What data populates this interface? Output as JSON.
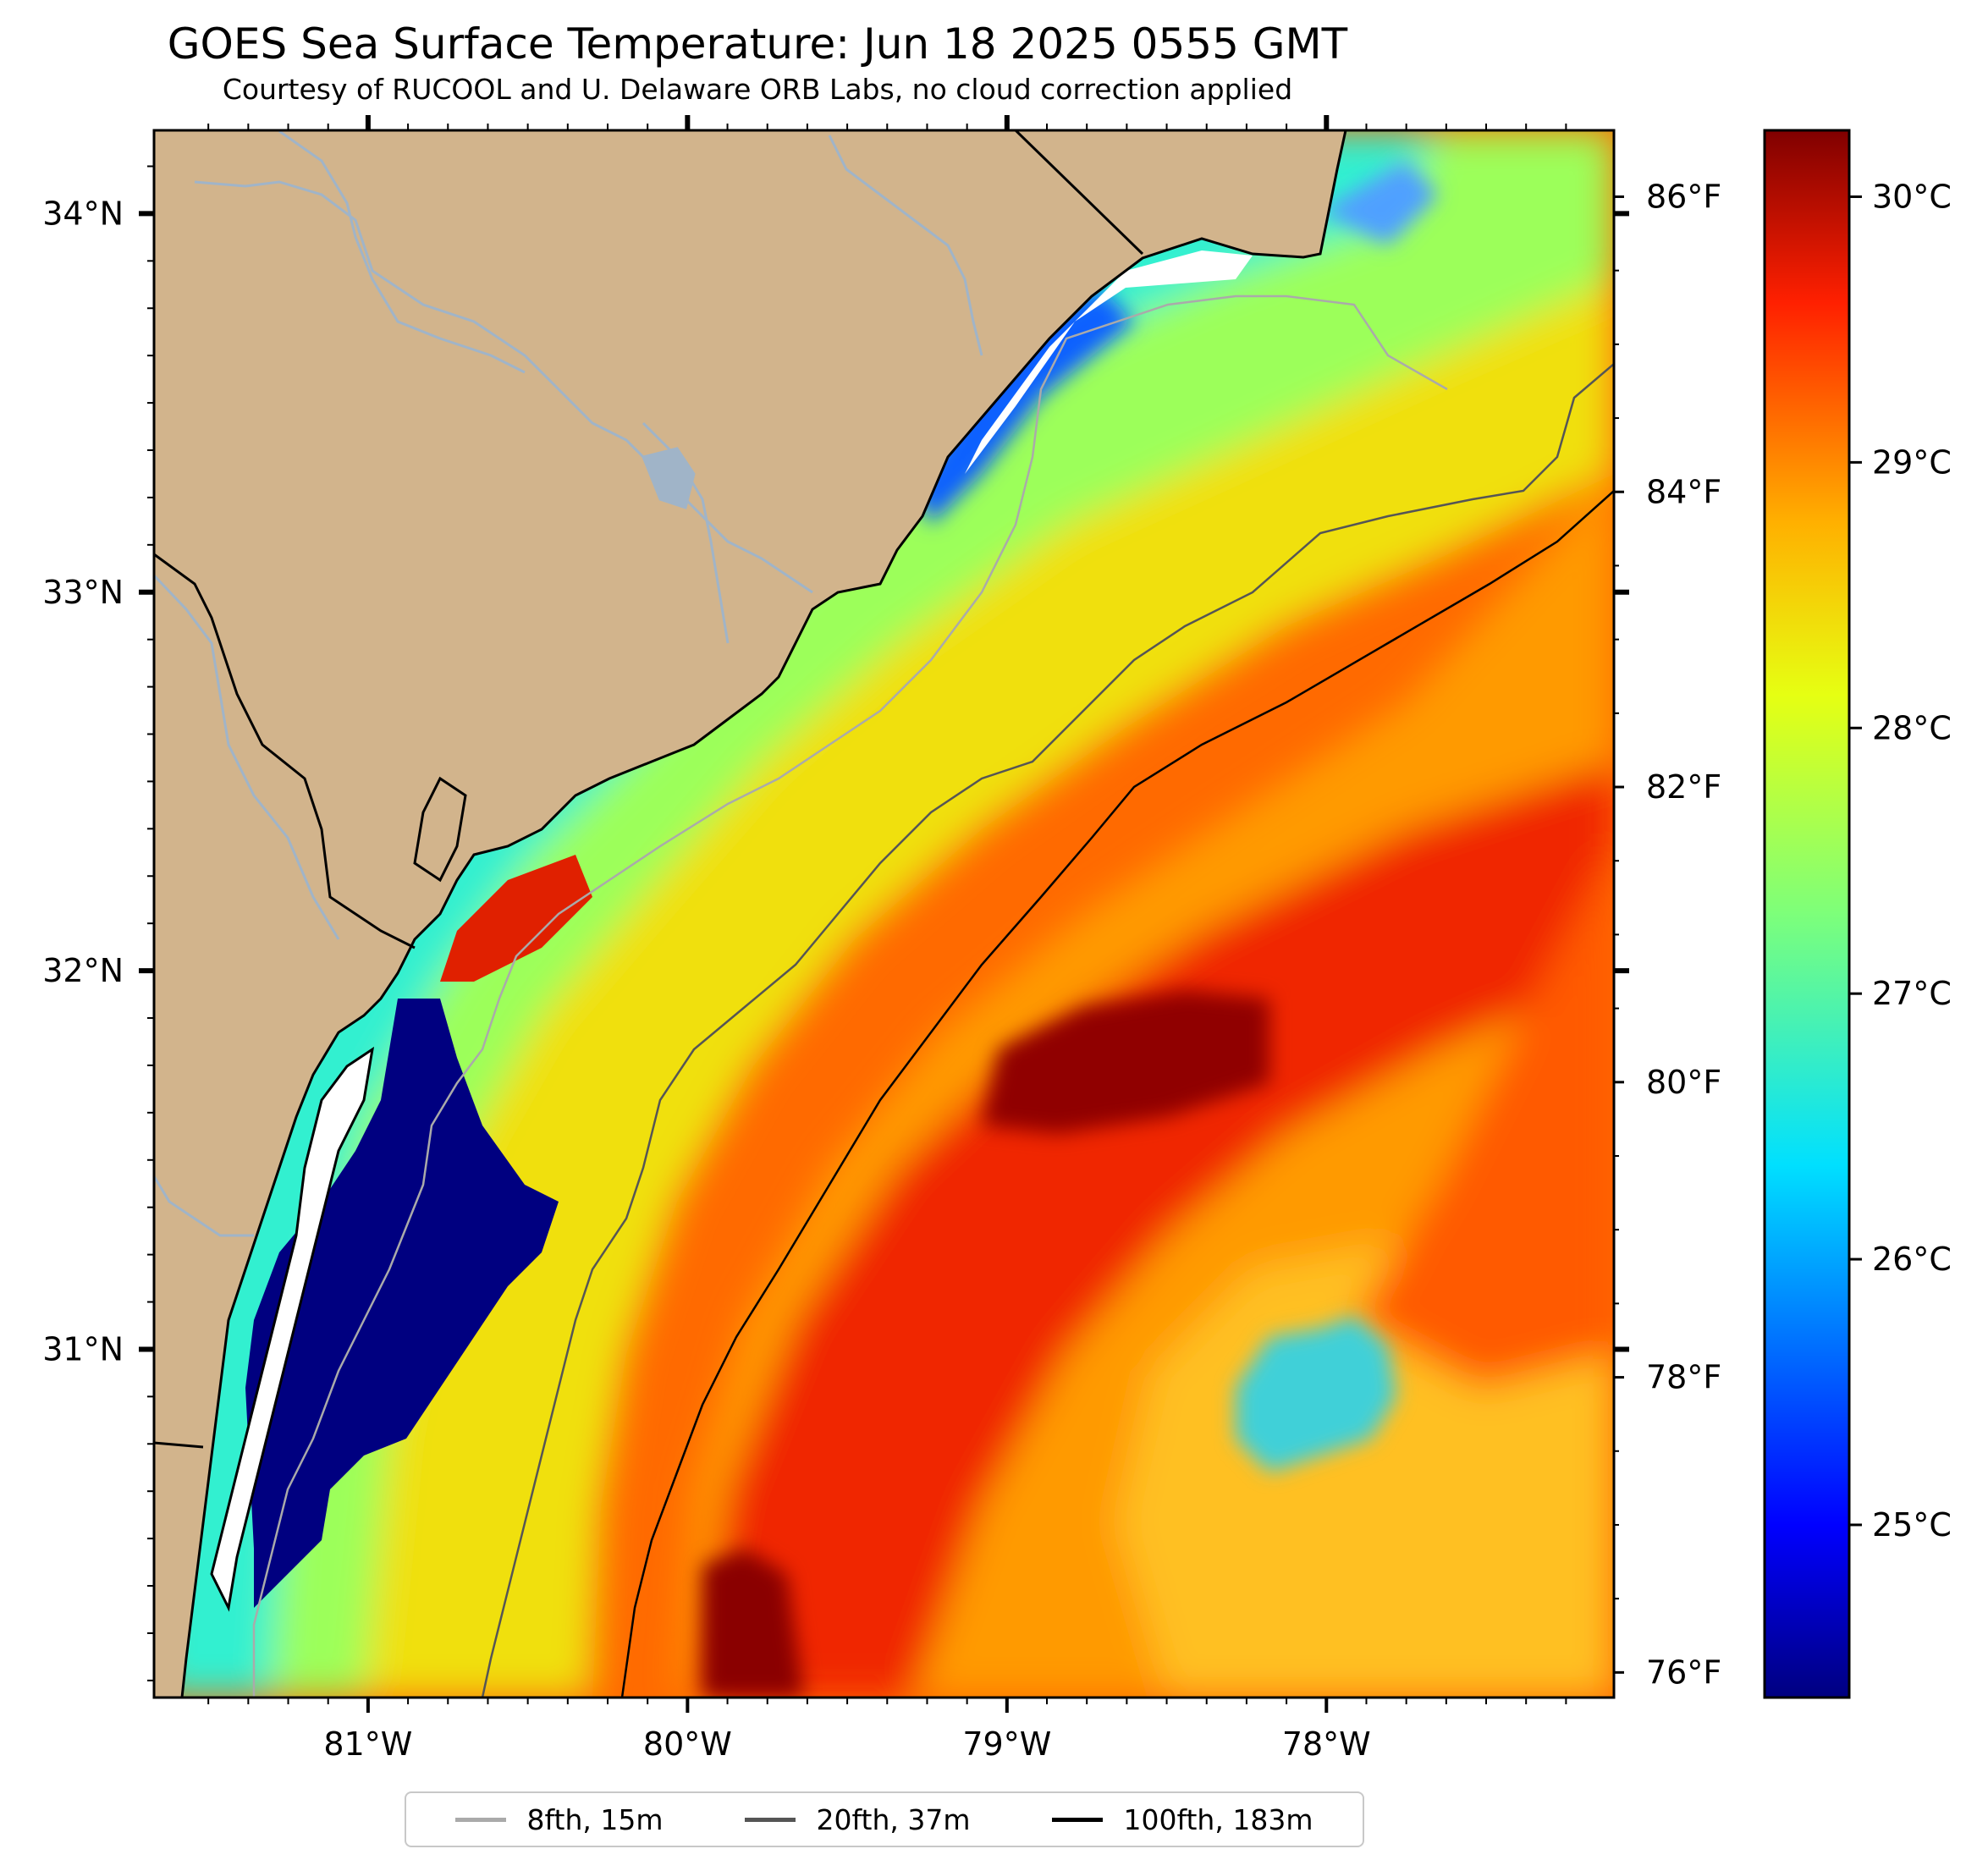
{
  "header": {
    "title": "GOES Sea Surface Temperature: Jun 18 2025 0555 GMT",
    "subtitle": "Courtesy of RUCOOL and U. Delaware ORB Labs, no cloud correction applied"
  },
  "map": {
    "lon_range": [
      -81.67,
      -77.1
    ],
    "lat_range": [
      30.08,
      34.22
    ],
    "lon_ticks": [
      {
        "value": -81,
        "label": "81°W"
      },
      {
        "value": -80,
        "label": "80°W"
      },
      {
        "value": -79,
        "label": "79°W"
      },
      {
        "value": -78,
        "label": "78°W"
      }
    ],
    "lat_ticks": [
      {
        "value": 31,
        "label": "31°N"
      },
      {
        "value": 32,
        "label": "32°N"
      },
      {
        "value": 33,
        "label": "33°N"
      },
      {
        "value": 34,
        "label": "34°N"
      }
    ],
    "land_color": "#d2b48c",
    "coast_color": "#000000",
    "river_color": "#a0b4c8"
  },
  "fahrenheit_axis": {
    "ticks": [
      {
        "value": 76,
        "label": "76°F"
      },
      {
        "value": 78,
        "label": "78°F"
      },
      {
        "value": 80,
        "label": "80°F"
      },
      {
        "value": 82,
        "label": "82°F"
      },
      {
        "value": 84,
        "label": "84°F"
      },
      {
        "value": 86,
        "label": "86°F"
      }
    ]
  },
  "colorbar": {
    "min_c": 24.35,
    "max_c": 30.25,
    "colormap": "jet",
    "ticks": [
      {
        "value": 25,
        "label": "25°C"
      },
      {
        "value": 26,
        "label": "26°C"
      },
      {
        "value": 27,
        "label": "27°C"
      },
      {
        "value": 28,
        "label": "28°C"
      },
      {
        "value": 29,
        "label": "29°C"
      },
      {
        "value": 30,
        "label": "30°C"
      }
    ]
  },
  "legend": {
    "items": [
      {
        "label": "8fth, 15m",
        "color": "#aaaaaa"
      },
      {
        "label": "20fth, 37m",
        "color": "#555555"
      },
      {
        "label": "100fth, 183m",
        "color": "#000000"
      }
    ]
  }
}
